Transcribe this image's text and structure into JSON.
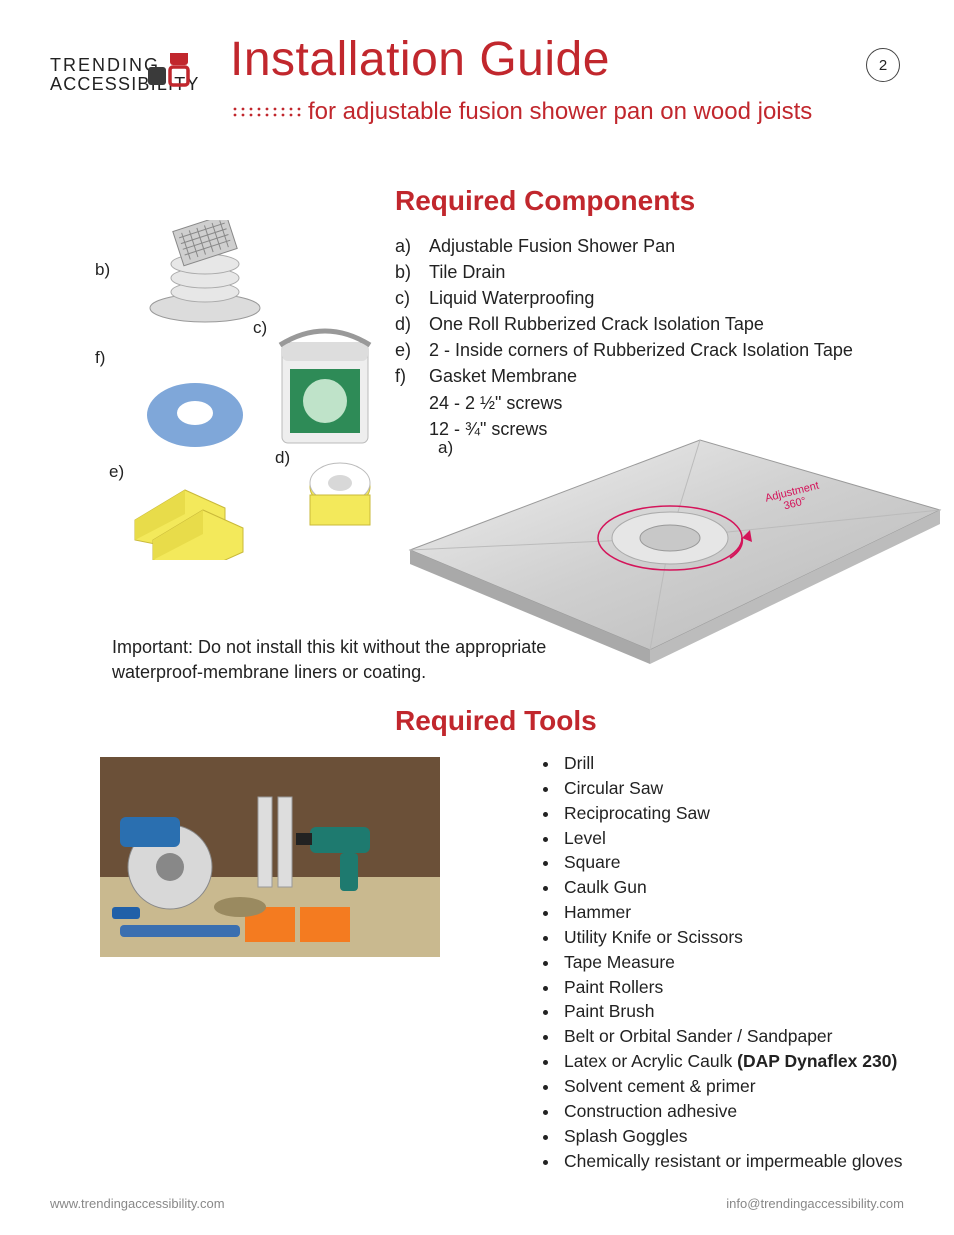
{
  "page_number": "2",
  "logo": {
    "word1": "TRENDING",
    "word2": "ACCESSIBILITY"
  },
  "title": "Installation Guide",
  "subtitle": "for adjustable fusion shower pan on wood joists",
  "components": {
    "heading": "Required Components",
    "items": [
      {
        "label": "a)",
        "text": "Adjustable Fusion Shower Pan"
      },
      {
        "label": "b)",
        "text": "Tile Drain"
      },
      {
        "label": "c)",
        "text": "Liquid Waterproofing"
      },
      {
        "label": "d)",
        "text": "One Roll Rubberized Crack Isolation Tape"
      },
      {
        "label": "e)",
        "text": "2 - Inside corners of Rubberized Crack Isolation Tape"
      },
      {
        "label": "f)",
        "text": "Gasket Membrane"
      }
    ],
    "extra_lines": [
      "24 - 2 ½\" screws",
      "12 - ¾\" screws"
    ],
    "callouts": {
      "a": "a)",
      "b": "b)",
      "c": "c)",
      "d": "d)",
      "e": "e)",
      "f": "f)"
    },
    "pan_annotation_l1": "Adjustment",
    "pan_annotation_l2": "360°"
  },
  "important_note": "Important: Do not install this kit without the appropriate waterproof-membrane liners or coating.",
  "tools": {
    "heading": "Required Tools",
    "items": [
      {
        "text": "Drill"
      },
      {
        "text": "Circular Saw"
      },
      {
        "text": "Reciprocating Saw"
      },
      {
        "text": "Level"
      },
      {
        "text": "Square"
      },
      {
        "text": "Caulk Gun"
      },
      {
        "text": "Hammer"
      },
      {
        "text": "Utility Knife or Scissors"
      },
      {
        "text": "Tape Measure"
      },
      {
        "text": "Paint Rollers"
      },
      {
        "text": "Paint Brush"
      },
      {
        "text": "Belt or Orbital Sander / Sandpaper"
      },
      {
        "text": "Latex or Acrylic Caulk ",
        "bold_suffix": "(DAP Dynaflex 230)"
      },
      {
        "text": "Solvent cement & primer"
      },
      {
        "text": "Construction adhesive"
      },
      {
        "text": "Splash Goggles"
      },
      {
        "text": "Chemically resistant or impermeable gloves"
      }
    ]
  },
  "footer": {
    "left": "www.trendingaccessibility.com",
    "right": "info@trendingaccessibility.com"
  },
  "colors": {
    "accent": "#c1272d",
    "text": "#222222",
    "muted": "#888888"
  }
}
